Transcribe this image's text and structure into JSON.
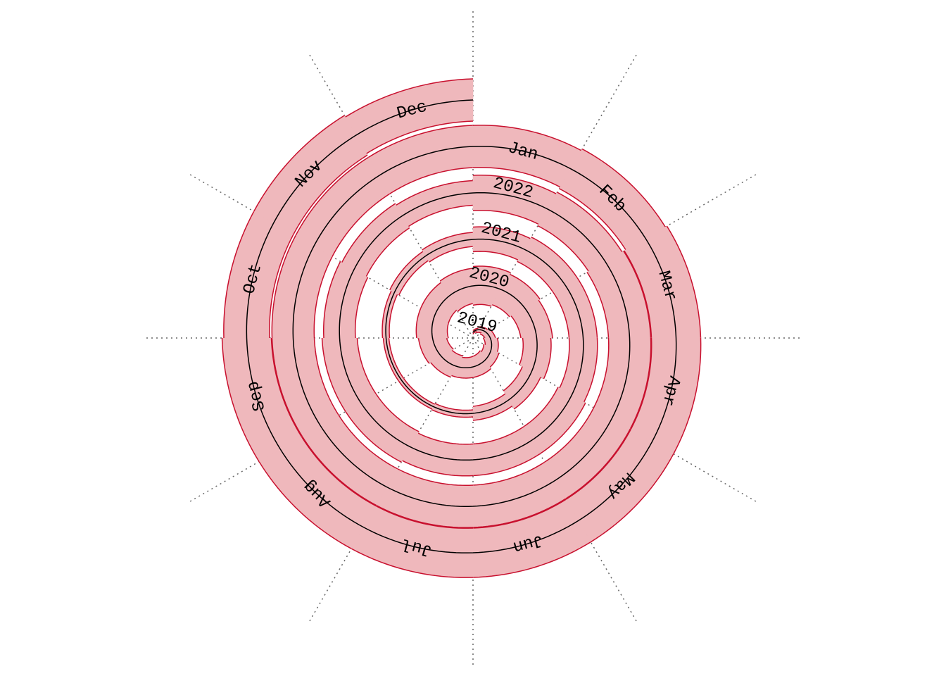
{
  "chart_data": {
    "type": "spiral",
    "x": [
      "2019-01",
      "2019-02",
      "2019-03",
      "2019-04",
      "2019-05",
      "2019-06",
      "2019-07",
      "2019-08",
      "2019-09",
      "2019-10",
      "2019-11",
      "2019-12",
      "2020-01",
      "2020-02",
      "2020-03",
      "2020-04",
      "2020-05",
      "2020-06",
      "2020-07",
      "2020-08",
      "2020-09",
      "2020-10",
      "2020-11",
      "2020-12",
      "2021-01",
      "2021-02",
      "2021-03",
      "2021-04",
      "2021-05",
      "2021-06",
      "2021-07",
      "2021-08",
      "2021-09",
      "2021-10",
      "2021-11",
      "2021-12",
      "2022-01",
      "2022-02",
      "2022-03",
      "2022-04",
      "2022-05",
      "2022-06",
      "2022-07",
      "2022-08",
      "2022-09",
      "2022-10",
      "2022-11",
      "2022-12",
      "2023-01",
      "2023-02",
      "2023-03",
      "2023-04",
      "2023-05",
      "2023-06",
      "2023-07",
      "2023-08",
      "2023-09",
      "2023-10",
      "2023-11",
      "2023-12"
    ],
    "values": [
      5,
      10,
      15,
      20,
      25,
      30,
      30,
      35,
      40,
      45,
      45,
      50,
      55,
      50,
      45,
      40,
      30,
      20,
      10,
      8,
      8,
      10,
      15,
      20,
      35,
      40,
      40,
      40,
      45,
      45,
      45,
      50,
      50,
      45,
      40,
      35,
      50,
      55,
      60,
      60,
      60,
      60,
      60,
      60,
      60,
      60,
      60,
      60,
      60,
      65,
      70,
      70,
      70,
      70,
      70,
      70,
      70,
      65,
      65,
      60
    ],
    "color": "#c8102e",
    "fill": "#efb8bc",
    "year_labels": [
      "2019",
      "2020",
      "2021",
      "2022"
    ],
    "month_labels": [
      "Jan",
      "Feb",
      "Mar",
      "Apr",
      "May",
      "Jun",
      "Jul",
      "Aug",
      "Sep",
      "Oct",
      "Nov",
      "Dec"
    ]
  }
}
